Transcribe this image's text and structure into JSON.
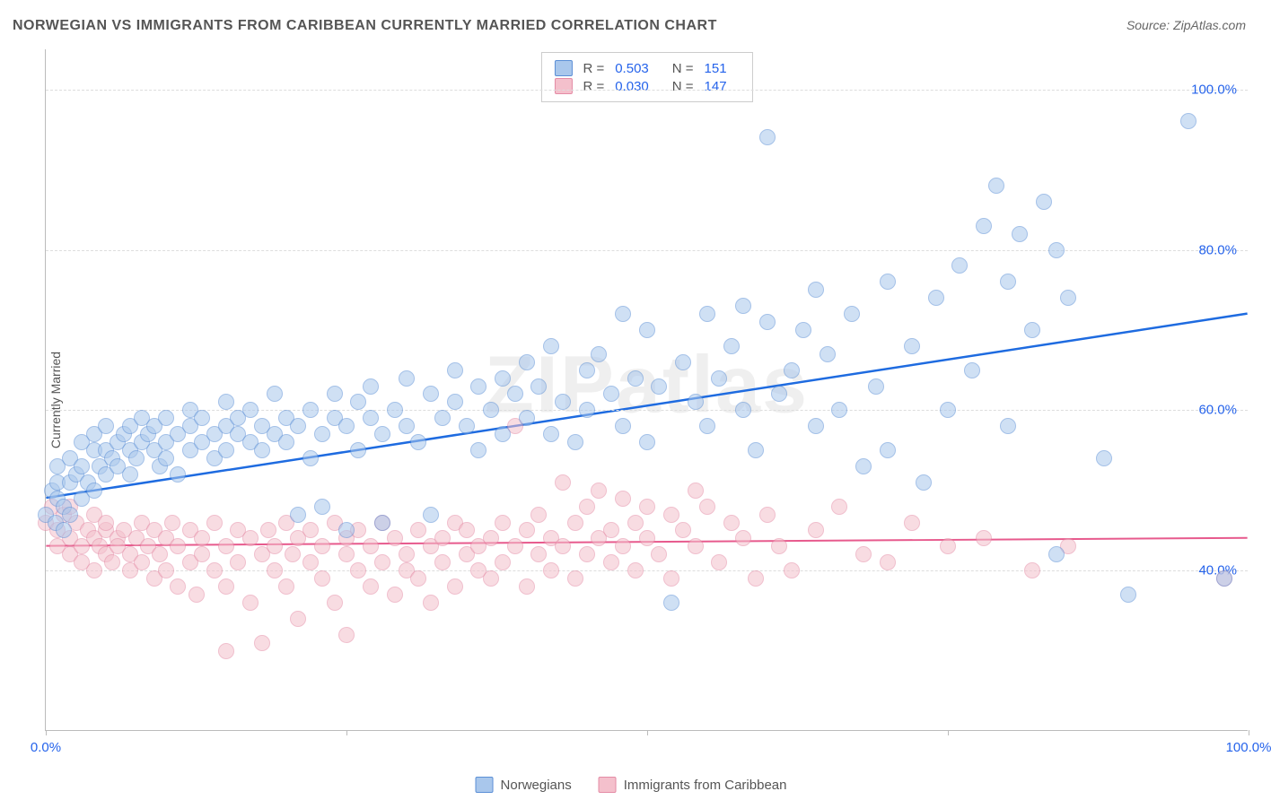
{
  "title": "NORWEGIAN VS IMMIGRANTS FROM CARIBBEAN CURRENTLY MARRIED CORRELATION CHART",
  "source": "Source: ZipAtlas.com",
  "watermark": "ZIPatlas",
  "ylabel": "Currently Married",
  "chart": {
    "type": "scatter",
    "background_color": "#ffffff",
    "grid_color": "#dddddd",
    "axis_color": "#bbbbbb",
    "tick_label_color": "#2563eb",
    "tick_fontsize": 15,
    "title_fontsize": 16,
    "xlim": [
      0,
      100
    ],
    "ylim": [
      20,
      105
    ],
    "yticks": [
      40,
      60,
      80,
      100
    ],
    "ytick_labels": [
      "40.0%",
      "60.0%",
      "80.0%",
      "100.0%"
    ],
    "xticks": [
      0,
      25,
      50,
      75,
      100
    ],
    "xtick_labels": [
      "0.0%",
      "",
      "",
      "",
      "100.0%"
    ],
    "marker_radius": 9,
    "marker_opacity": 0.55,
    "series": [
      {
        "name": "Norwegians",
        "color_fill": "#a9c7ec",
        "color_stroke": "#5b8fd6",
        "trend_color": "#1e6be0",
        "trend_width": 2.5,
        "R": "0.503",
        "N": "151",
        "trend": {
          "x1": 0,
          "y1": 49,
          "x2": 100,
          "y2": 72
        },
        "points": [
          [
            0,
            47
          ],
          [
            0.5,
            50
          ],
          [
            0.8,
            46
          ],
          [
            1,
            49
          ],
          [
            1,
            51
          ],
          [
            1,
            53
          ],
          [
            1.5,
            48
          ],
          [
            1.5,
            45
          ],
          [
            2,
            51
          ],
          [
            2,
            54
          ],
          [
            2,
            47
          ],
          [
            2.5,
            52
          ],
          [
            3,
            56
          ],
          [
            3,
            49
          ],
          [
            3,
            53
          ],
          [
            3.5,
            51
          ],
          [
            4,
            55
          ],
          [
            4,
            57
          ],
          [
            4,
            50
          ],
          [
            4.5,
            53
          ],
          [
            5,
            52
          ],
          [
            5,
            58
          ],
          [
            5,
            55
          ],
          [
            5.5,
            54
          ],
          [
            6,
            56
          ],
          [
            6,
            53
          ],
          [
            6.5,
            57
          ],
          [
            7,
            55
          ],
          [
            7,
            58
          ],
          [
            7,
            52
          ],
          [
            7.5,
            54
          ],
          [
            8,
            56
          ],
          [
            8,
            59
          ],
          [
            8.5,
            57
          ],
          [
            9,
            55
          ],
          [
            9,
            58
          ],
          [
            9.5,
            53
          ],
          [
            10,
            56
          ],
          [
            10,
            59
          ],
          [
            10,
            54
          ],
          [
            11,
            57
          ],
          [
            11,
            52
          ],
          [
            12,
            58
          ],
          [
            12,
            55
          ],
          [
            12,
            60
          ],
          [
            13,
            56
          ],
          [
            13,
            59
          ],
          [
            14,
            57
          ],
          [
            14,
            54
          ],
          [
            15,
            58
          ],
          [
            15,
            61
          ],
          [
            15,
            55
          ],
          [
            16,
            57
          ],
          [
            16,
            59
          ],
          [
            17,
            56
          ],
          [
            17,
            60
          ],
          [
            18,
            58
          ],
          [
            18,
            55
          ],
          [
            19,
            57
          ],
          [
            19,
            62
          ],
          [
            20,
            59
          ],
          [
            20,
            56
          ],
          [
            21,
            47
          ],
          [
            21,
            58
          ],
          [
            22,
            60
          ],
          [
            22,
            54
          ],
          [
            23,
            57
          ],
          [
            23,
            48
          ],
          [
            24,
            59
          ],
          [
            24,
            62
          ],
          [
            25,
            58
          ],
          [
            25,
            45
          ],
          [
            26,
            61
          ],
          [
            26,
            55
          ],
          [
            27,
            59
          ],
          [
            27,
            63
          ],
          [
            28,
            57
          ],
          [
            28,
            46
          ],
          [
            29,
            60
          ],
          [
            30,
            58
          ],
          [
            30,
            64
          ],
          [
            31,
            56
          ],
          [
            32,
            62
          ],
          [
            32,
            47
          ],
          [
            33,
            59
          ],
          [
            34,
            61
          ],
          [
            34,
            65
          ],
          [
            35,
            58
          ],
          [
            36,
            63
          ],
          [
            36,
            55
          ],
          [
            37,
            60
          ],
          [
            38,
            64
          ],
          [
            38,
            57
          ],
          [
            39,
            62
          ],
          [
            40,
            66
          ],
          [
            40,
            59
          ],
          [
            41,
            63
          ],
          [
            42,
            57
          ],
          [
            42,
            68
          ],
          [
            43,
            61
          ],
          [
            44,
            56
          ],
          [
            45,
            65
          ],
          [
            45,
            60
          ],
          [
            46,
            67
          ],
          [
            47,
            62
          ],
          [
            48,
            72
          ],
          [
            48,
            58
          ],
          [
            49,
            64
          ],
          [
            50,
            70
          ],
          [
            50,
            56
          ],
          [
            51,
            63
          ],
          [
            52,
            36
          ],
          [
            53,
            66
          ],
          [
            54,
            61
          ],
          [
            55,
            72
          ],
          [
            55,
            58
          ],
          [
            56,
            64
          ],
          [
            57,
            68
          ],
          [
            58,
            60
          ],
          [
            58,
            73
          ],
          [
            59,
            55
          ],
          [
            60,
            71
          ],
          [
            60,
            94
          ],
          [
            61,
            62
          ],
          [
            62,
            65
          ],
          [
            63,
            70
          ],
          [
            64,
            58
          ],
          [
            64,
            75
          ],
          [
            65,
            67
          ],
          [
            66,
            60
          ],
          [
            67,
            72
          ],
          [
            68,
            53
          ],
          [
            69,
            63
          ],
          [
            70,
            76
          ],
          [
            70,
            55
          ],
          [
            72,
            68
          ],
          [
            73,
            51
          ],
          [
            74,
            74
          ],
          [
            75,
            60
          ],
          [
            76,
            78
          ],
          [
            77,
            65
          ],
          [
            78,
            83
          ],
          [
            79,
            88
          ],
          [
            80,
            58
          ],
          [
            80,
            76
          ],
          [
            81,
            82
          ],
          [
            82,
            70
          ],
          [
            83,
            86
          ],
          [
            84,
            42
          ],
          [
            84,
            80
          ],
          [
            85,
            74
          ],
          [
            88,
            54
          ],
          [
            90,
            37
          ],
          [
            95,
            96
          ],
          [
            98,
            39
          ]
        ]
      },
      {
        "name": "Immigrants from Caribbean",
        "color_fill": "#f4c0cc",
        "color_stroke": "#e48ba5",
        "trend_color": "#e75a8d",
        "trend_width": 2,
        "R": "0.030",
        "N": "147",
        "trend": {
          "x1": 0,
          "y1": 43,
          "x2": 100,
          "y2": 44
        },
        "points": [
          [
            0,
            46
          ],
          [
            0.5,
            48
          ],
          [
            1,
            45
          ],
          [
            1,
            43
          ],
          [
            1.5,
            47
          ],
          [
            2,
            44
          ],
          [
            2,
            42
          ],
          [
            2,
            48
          ],
          [
            2.5,
            46
          ],
          [
            3,
            43
          ],
          [
            3,
            41
          ],
          [
            3.5,
            45
          ],
          [
            4,
            44
          ],
          [
            4,
            47
          ],
          [
            4,
            40
          ],
          [
            4.5,
            43
          ],
          [
            5,
            45
          ],
          [
            5,
            42
          ],
          [
            5,
            46
          ],
          [
            5.5,
            41
          ],
          [
            6,
            44
          ],
          [
            6,
            43
          ],
          [
            6.5,
            45
          ],
          [
            7,
            42
          ],
          [
            7,
            40
          ],
          [
            7.5,
            44
          ],
          [
            8,
            46
          ],
          [
            8,
            41
          ],
          [
            8.5,
            43
          ],
          [
            9,
            45
          ],
          [
            9,
            39
          ],
          [
            9.5,
            42
          ],
          [
            10,
            44
          ],
          [
            10,
            40
          ],
          [
            10.5,
            46
          ],
          [
            11,
            43
          ],
          [
            11,
            38
          ],
          [
            12,
            45
          ],
          [
            12,
            41
          ],
          [
            12.5,
            37
          ],
          [
            13,
            44
          ],
          [
            13,
            42
          ],
          [
            14,
            40
          ],
          [
            14,
            46
          ],
          [
            15,
            43
          ],
          [
            15,
            30
          ],
          [
            15,
            38
          ],
          [
            16,
            45
          ],
          [
            16,
            41
          ],
          [
            17,
            44
          ],
          [
            17,
            36
          ],
          [
            18,
            42
          ],
          [
            18,
            31
          ],
          [
            18.5,
            45
          ],
          [
            19,
            40
          ],
          [
            19,
            43
          ],
          [
            20,
            46
          ],
          [
            20,
            38
          ],
          [
            20.5,
            42
          ],
          [
            21,
            44
          ],
          [
            21,
            34
          ],
          [
            22,
            41
          ],
          [
            22,
            45
          ],
          [
            23,
            39
          ],
          [
            23,
            43
          ],
          [
            24,
            46
          ],
          [
            24,
            36
          ],
          [
            25,
            42
          ],
          [
            25,
            44
          ],
          [
            25,
            32
          ],
          [
            26,
            40
          ],
          [
            26,
            45
          ],
          [
            27,
            43
          ],
          [
            27,
            38
          ],
          [
            28,
            41
          ],
          [
            28,
            46
          ],
          [
            29,
            44
          ],
          [
            29,
            37
          ],
          [
            30,
            42
          ],
          [
            30,
            40
          ],
          [
            31,
            45
          ],
          [
            31,
            39
          ],
          [
            32,
            43
          ],
          [
            32,
            36
          ],
          [
            33,
            44
          ],
          [
            33,
            41
          ],
          [
            34,
            46
          ],
          [
            34,
            38
          ],
          [
            35,
            42
          ],
          [
            35,
            45
          ],
          [
            36,
            40
          ],
          [
            36,
            43
          ],
          [
            37,
            44
          ],
          [
            37,
            39
          ],
          [
            38,
            46
          ],
          [
            38,
            41
          ],
          [
            39,
            43
          ],
          [
            39,
            58
          ],
          [
            40,
            45
          ],
          [
            40,
            38
          ],
          [
            41,
            42
          ],
          [
            41,
            47
          ],
          [
            42,
            44
          ],
          [
            42,
            40
          ],
          [
            43,
            51
          ],
          [
            43,
            43
          ],
          [
            44,
            46
          ],
          [
            44,
            39
          ],
          [
            45,
            48
          ],
          [
            45,
            42
          ],
          [
            46,
            44
          ],
          [
            46,
            50
          ],
          [
            47,
            41
          ],
          [
            47,
            45
          ],
          [
            48,
            49
          ],
          [
            48,
            43
          ],
          [
            49,
            46
          ],
          [
            49,
            40
          ],
          [
            50,
            48
          ],
          [
            50,
            44
          ],
          [
            51,
            42
          ],
          [
            52,
            47
          ],
          [
            52,
            39
          ],
          [
            53,
            45
          ],
          [
            54,
            50
          ],
          [
            54,
            43
          ],
          [
            55,
            48
          ],
          [
            56,
            41
          ],
          [
            57,
            46
          ],
          [
            58,
            44
          ],
          [
            59,
            39
          ],
          [
            60,
            47
          ],
          [
            61,
            43
          ],
          [
            62,
            40
          ],
          [
            64,
            45
          ],
          [
            66,
            48
          ],
          [
            68,
            42
          ],
          [
            70,
            41
          ],
          [
            72,
            46
          ],
          [
            75,
            43
          ],
          [
            78,
            44
          ],
          [
            82,
            40
          ],
          [
            85,
            43
          ],
          [
            98,
            39
          ]
        ]
      }
    ]
  }
}
